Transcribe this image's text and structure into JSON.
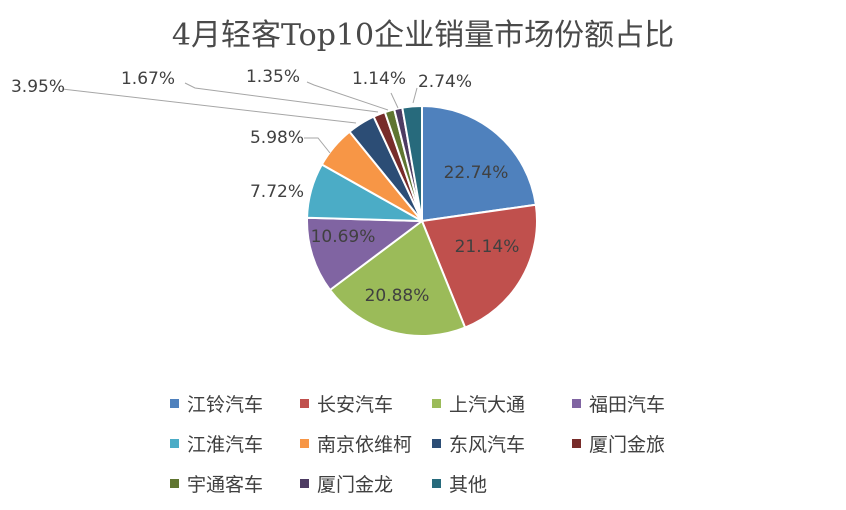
{
  "chart_data": {
    "type": "pie",
    "title": "4月轻客Top10企业销量市场份额占比",
    "categories": [
      "江铃汽车",
      "长安汽车",
      "上汽大通",
      "福田汽车",
      "江淮汽车",
      "南京依维柯",
      "东风汽车",
      "厦门金旅",
      "宇通客车",
      "厦门金龙",
      "其他"
    ],
    "values": [
      22.74,
      21.14,
      20.88,
      10.69,
      7.72,
      5.98,
      3.95,
      1.67,
      1.35,
      1.14,
      2.74
    ],
    "labels": [
      "22.74%",
      "21.14%",
      "20.88%",
      "10.69%",
      "7.72%",
      "5.98%",
      "3.95%",
      "1.67%",
      "1.35%",
      "1.14%",
      "2.74%"
    ],
    "colors": [
      "#4f81bd",
      "#c0504d",
      "#9bbb59",
      "#8064a2",
      "#4bacc6",
      "#f79646",
      "#2c4d75",
      "#772c2a",
      "#5f7530",
      "#4d3b62",
      "#276a7c"
    ],
    "legend_position": "bottom"
  }
}
